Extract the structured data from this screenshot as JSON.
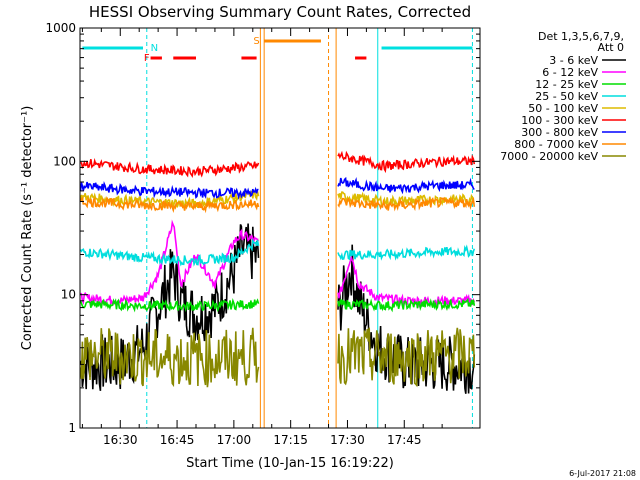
{
  "chart_data": {
    "type": "line",
    "title": "HESSI Observing Summary Count Rates, Corrected",
    "xlabel": "Start Time (10-Jan-15 16:19:22)",
    "ylabel": "Corrected Count Rate (s⁻¹ detector⁻¹)",
    "footer": "6-Jul-2017 21:08",
    "y_scale": "log",
    "ylim": [
      1,
      1000
    ],
    "xlim": [
      "16:19:22",
      "18:05:00"
    ],
    "x_ticks": [
      "16:30",
      "16:45",
      "17:00",
      "17:15",
      "17:30",
      "17:45"
    ],
    "y_ticks": [
      "1",
      "10",
      "100",
      "1000"
    ],
    "grid": false,
    "legend": {
      "header_line1": "Det 1,3,5,6,7,9,",
      "header_line2": "Att 0",
      "placement": "top-right-outside"
    },
    "flags": [
      {
        "label": "N",
        "color": "#00e0e0"
      },
      {
        "label": "F",
        "color": "#ff0000"
      },
      {
        "label": "S",
        "color": "#ff8800"
      }
    ],
    "series": [
      {
        "name": "3 - 6 keV",
        "color": "#000000",
        "x": [
          "16:20",
          "16:30",
          "16:36",
          "16:40",
          "16:44",
          "16:46",
          "16:50",
          "16:55",
          "17:00",
          "17:02",
          "17:05",
          "17:28",
          "17:31",
          "17:33",
          "17:38",
          "17:45",
          "17:50",
          "17:55"
        ],
        "y": [
          3,
          3,
          4,
          8,
          15,
          9,
          7,
          8,
          15,
          22,
          20,
          8,
          16,
          9,
          4,
          3,
          3,
          3
        ]
      },
      {
        "name": "6 - 12 keV",
        "color": "#ff00ff",
        "x": [
          "16:20",
          "16:30",
          "16:36",
          "16:40",
          "16:44",
          "16:46",
          "16:50",
          "16:55",
          "17:00",
          "17:02",
          "17:05",
          "17:28",
          "17:31",
          "17:33",
          "17:38",
          "17:45",
          "17:50",
          "17:55"
        ],
        "y": [
          9.5,
          9,
          9.5,
          14,
          35,
          12,
          20,
          12,
          25,
          28,
          26,
          10,
          20,
          12,
          9.5,
          9,
          9,
          9
        ]
      },
      {
        "name": "12 - 25 keV",
        "color": "#00dd00",
        "x": [
          "16:20",
          "16:35",
          "16:50",
          "17:05",
          "17:28",
          "17:40",
          "17:55"
        ],
        "y": [
          8.5,
          8.3,
          8.2,
          8.5,
          8.5,
          8.3,
          8.5
        ]
      },
      {
        "name": "25 - 50 keV",
        "color": "#00dddd",
        "x": [
          "16:20",
          "16:35",
          "16:50",
          "17:00",
          "17:05",
          "17:28",
          "17:40",
          "17:55"
        ],
        "y": [
          21,
          19,
          18,
          19,
          24,
          20,
          20,
          21
        ]
      },
      {
        "name": "50 - 100 keV",
        "color": "#ddbb00",
        "x": [
          "16:20",
          "16:35",
          "16:50",
          "17:05",
          "17:28",
          "17:40",
          "17:55"
        ],
        "y": [
          54,
          50,
          48,
          56,
          55,
          50,
          52
        ]
      },
      {
        "name": "100 - 300 keV",
        "color": "#ff0000",
        "x": [
          "16:20",
          "16:35",
          "16:50",
          "17:05",
          "17:28",
          "17:40",
          "17:55"
        ],
        "y": [
          98,
          88,
          84,
          92,
          110,
          92,
          100
        ]
      },
      {
        "name": "300 - 800 keV",
        "color": "#0000ff",
        "x": [
          "16:20",
          "16:35",
          "16:50",
          "17:05",
          "17:28",
          "17:40",
          "17:55"
        ],
        "y": [
          65,
          60,
          58,
          58,
          70,
          62,
          66
        ]
      },
      {
        "name": "800 - 7000 keV",
        "color": "#ff8800",
        "x": [
          "16:20",
          "16:35",
          "16:50",
          "17:05",
          "17:28",
          "17:40",
          "17:55"
        ],
        "y": [
          50,
          47,
          46,
          48,
          50,
          46,
          49
        ]
      },
      {
        "name": "7000 - 20000 keV",
        "color": "#888800",
        "x": [
          "16:20",
          "16:35",
          "16:50",
          "17:05",
          "17:28",
          "17:40",
          "17:55"
        ],
        "y": [
          3.5,
          3.4,
          3.3,
          3.4,
          3.5,
          3.4,
          3.5
        ]
      }
    ]
  }
}
